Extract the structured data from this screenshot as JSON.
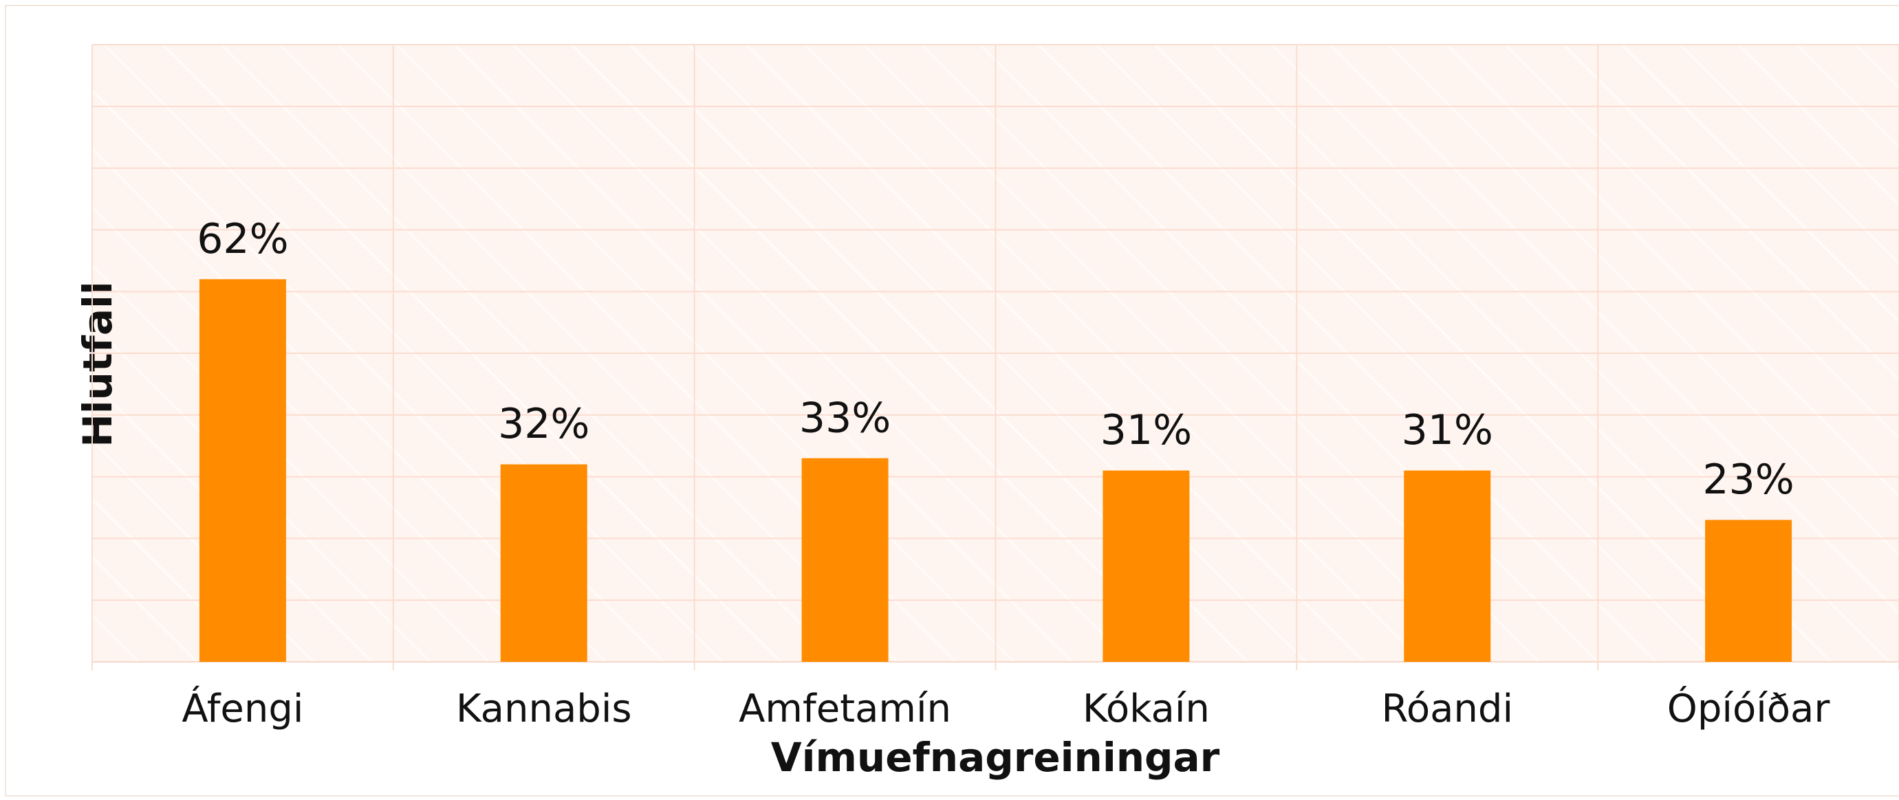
{
  "chart_data": {
    "type": "bar",
    "x_label": "Vímuefnagreiningar",
    "y_label": "Hlutfall",
    "categories": [
      "Áfengi",
      "Kannabis",
      "Amfetamín",
      "Kókaín",
      "Róandi",
      "Ópíóíðar"
    ],
    "values": [
      62,
      32,
      33,
      31,
      31,
      23
    ],
    "value_labels": [
      "62%",
      "32%",
      "33%",
      "31%",
      "31%",
      "23%"
    ],
    "color": "#ff8c00",
    "ylim": [
      0,
      100
    ],
    "yticks": [
      0,
      10,
      20,
      30,
      40,
      50,
      60,
      70,
      80,
      90,
      100
    ],
    "grid": true
  }
}
